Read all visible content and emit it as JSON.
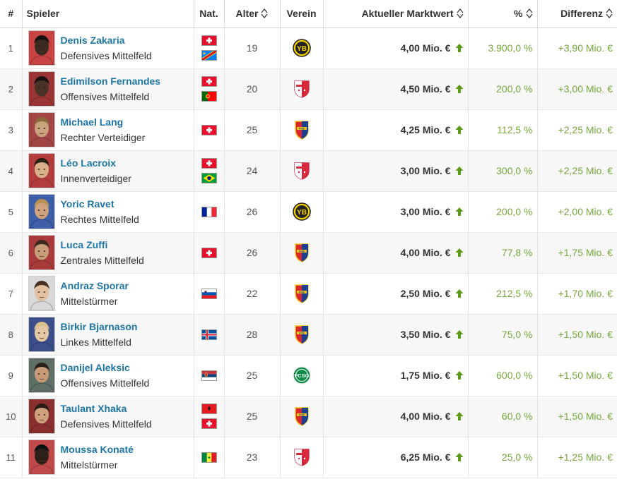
{
  "headers": {
    "num": "#",
    "player": "Spieler",
    "nat": "Nat.",
    "age": "Alter",
    "club": "Verein",
    "market_value": "Aktueller Marktwert",
    "pct": "%",
    "diff": "Differenz"
  },
  "colors": {
    "link": "#1d75a3",
    "positive": "#74a93a",
    "up_arrow": "#5b9a16"
  },
  "rows": [
    {
      "num": "1",
      "name": "Denis Zakaria",
      "position": "Defensives Mittelfeld",
      "flags": [
        "flag-switzerland",
        "flag-dr-congo"
      ],
      "age": "19",
      "club": "young-boys-crest",
      "market_value": "4,00 Mio. €",
      "pct": "3.900,0 %",
      "diff": "+3,90 Mio. €"
    },
    {
      "num": "2",
      "name": "Edimilson Fernandes",
      "position": "Offensives Mittelfeld",
      "flags": [
        "flag-switzerland",
        "flag-portugal"
      ],
      "age": "20",
      "club": "sion-crest",
      "market_value": "4,50 Mio. €",
      "pct": "200,0 %",
      "diff": "+3,00 Mio. €"
    },
    {
      "num": "3",
      "name": "Michael Lang",
      "position": "Rechter Verteidiger",
      "flags": [
        "flag-switzerland"
      ],
      "age": "25",
      "club": "basel-crest",
      "market_value": "4,25 Mio. €",
      "pct": "112,5 %",
      "diff": "+2,25 Mio. €"
    },
    {
      "num": "4",
      "name": "Léo Lacroix",
      "position": "Innenverteidiger",
      "flags": [
        "flag-switzerland",
        "flag-brazil"
      ],
      "age": "24",
      "club": "sion-crest",
      "market_value": "3,00 Mio. €",
      "pct": "300,0 %",
      "diff": "+2,25 Mio. €"
    },
    {
      "num": "5",
      "name": "Yoric Ravet",
      "position": "Rechtes Mittelfeld",
      "flags": [
        "flag-france"
      ],
      "age": "26",
      "club": "young-boys-crest",
      "market_value": "3,00 Mio. €",
      "pct": "200,0 %",
      "diff": "+2,00 Mio. €"
    },
    {
      "num": "6",
      "name": "Luca Zuffi",
      "position": "Zentrales Mittelfeld",
      "flags": [
        "flag-switzerland"
      ],
      "age": "26",
      "club": "basel-crest",
      "market_value": "4,00 Mio. €",
      "pct": "77,8 %",
      "diff": "+1,75 Mio. €"
    },
    {
      "num": "7",
      "name": "Andraz Sporar",
      "position": "Mittelstürmer",
      "flags": [
        "flag-slovenia"
      ],
      "age": "22",
      "club": "basel-crest",
      "market_value": "2,50 Mio. €",
      "pct": "212,5 %",
      "diff": "+1,70 Mio. €"
    },
    {
      "num": "8",
      "name": "Birkir Bjarnason",
      "position": "Linkes Mittelfeld",
      "flags": [
        "flag-iceland"
      ],
      "age": "28",
      "club": "basel-crest",
      "market_value": "3,50 Mio. €",
      "pct": "75,0 %",
      "diff": "+1,50 Mio. €"
    },
    {
      "num": "9",
      "name": "Danijel Aleksic",
      "position": "Offensives Mittelfeld",
      "flags": [
        "flag-serbia"
      ],
      "age": "25",
      "club": "st-gallen-crest",
      "market_value": "1,75 Mio. €",
      "pct": "600,0 %",
      "diff": "+1,50 Mio. €"
    },
    {
      "num": "10",
      "name": "Taulant Xhaka",
      "position": "Defensives Mittelfeld",
      "flags": [
        "flag-albania",
        "flag-switzerland"
      ],
      "age": "25",
      "club": "basel-crest",
      "market_value": "4,00 Mio. €",
      "pct": "60,0 %",
      "diff": "+1,50 Mio. €"
    },
    {
      "num": "11",
      "name": "Moussa Konaté",
      "position": "Mittelstürmer",
      "flags": [
        "flag-senegal"
      ],
      "age": "23",
      "club": "sion-crest",
      "market_value": "6,25 Mio. €",
      "pct": "25,0 %",
      "diff": "+1,25 Mio. €"
    }
  ]
}
